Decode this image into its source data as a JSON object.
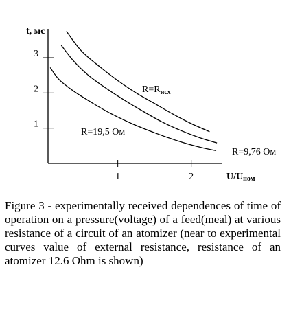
{
  "chart_data": {
    "type": "line",
    "title": "",
    "xlabel": "U/U",
    "xlabel_sub": "ном",
    "ylabel": "t, мс",
    "xlim": [
      0.05,
      2.35
    ],
    "ylim": [
      0,
      3.75
    ],
    "xticks": [
      1,
      2
    ],
    "yticks": [
      1,
      2,
      3
    ],
    "grid": false,
    "series": [
      {
        "name": "R=R",
        "name_sub": "исх",
        "x": [
          0.3,
          0.5,
          0.75,
          1.0,
          1.25,
          1.5,
          1.75,
          2.0,
          2.25
        ],
        "y": [
          3.75,
          3.2,
          2.75,
          2.35,
          2.0,
          1.7,
          1.4,
          1.13,
          0.9
        ]
      },
      {
        "name": "R=9,76 Ом",
        "x": [
          0.23,
          0.4,
          0.6,
          0.85,
          1.1,
          1.35,
          1.6,
          1.85,
          2.1,
          2.35
        ],
        "y": [
          3.35,
          2.9,
          2.5,
          2.12,
          1.78,
          1.47,
          1.18,
          0.94,
          0.74,
          0.58
        ]
      },
      {
        "name": "R=19,5 Ом",
        "x": [
          0.08,
          0.2,
          0.4,
          0.65,
          0.9,
          1.2,
          1.5,
          1.8,
          2.1,
          2.34
        ],
        "y": [
          2.72,
          2.38,
          2.05,
          1.72,
          1.42,
          1.12,
          0.87,
          0.65,
          0.47,
          0.36
        ]
      }
    ]
  },
  "caption": "Figure 3 - experimentally received dependences of time of operation on a pressure(voltage) of a feed(meal) at various resistance of a circuit of an atomizer (near to experimental curves value of external resistance, resistance of an atomizer 12.6 Ohm is shown)"
}
